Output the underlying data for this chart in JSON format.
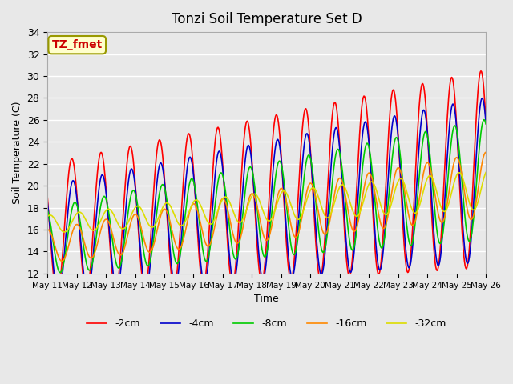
{
  "title": "Tonzi Soil Temperature Set D",
  "xlabel": "Time",
  "ylabel": "Soil Temperature (C)",
  "ylim": [
    12,
    34
  ],
  "annotation": "TZ_fmet",
  "bg_color": "#e8e8e8",
  "plot_bg_color": "#e8e8e8",
  "grid_color": "#ffffff",
  "series_colors": [
    "#ff0000",
    "#0000cc",
    "#00cc00",
    "#ff8800",
    "#dddd00"
  ],
  "series_labels": [
    "-2cm",
    "-4cm",
    "-8cm",
    "-16cm",
    "-32cm"
  ],
  "x_tick_labels": [
    "May 11",
    "May 12",
    "May 13",
    "May 14",
    "May 15",
    "May 16",
    "May 17",
    "May 18",
    "May 19",
    "May 20",
    "May 21",
    "May 22",
    "May 23",
    "May 24",
    "May 25",
    "May 26"
  ],
  "n_days": 15,
  "pts_per_day": 48,
  "yticks": [
    12,
    14,
    16,
    18,
    20,
    22,
    24,
    26,
    28,
    30,
    32,
    34
  ]
}
